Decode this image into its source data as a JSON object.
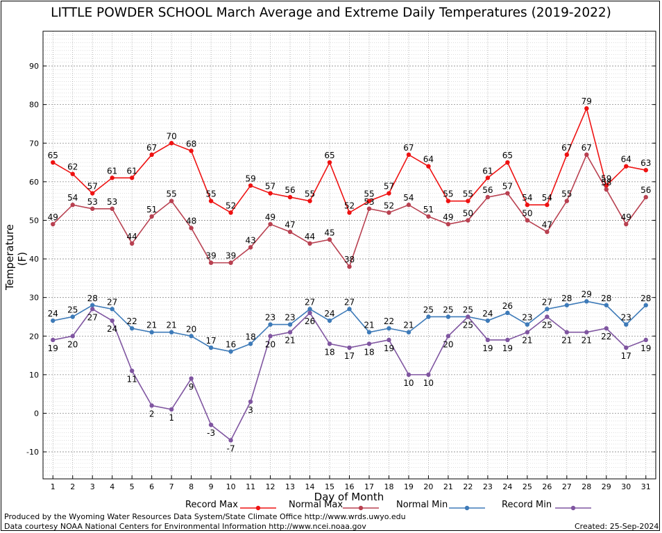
{
  "chart_data": {
    "type": "line",
    "title": "LITTLE POWDER SCHOOL March Average and Extreme Daily Temperatures (2019-2022)",
    "xlabel": "Day of Month",
    "ylabel": "Temperature (F)",
    "xlim": [
      0.5,
      31.5
    ],
    "ylim": [
      -17,
      99
    ],
    "x": [
      1,
      2,
      3,
      4,
      5,
      6,
      7,
      8,
      9,
      10,
      11,
      12,
      13,
      14,
      15,
      16,
      17,
      18,
      19,
      20,
      21,
      22,
      23,
      24,
      25,
      26,
      27,
      28,
      29,
      30,
      31
    ],
    "y_ticks": [
      -10,
      0,
      10,
      20,
      30,
      40,
      50,
      60,
      70,
      80,
      90
    ],
    "grid": true,
    "legend_position": "bottom",
    "series": [
      {
        "name": "Record Max",
        "color": "#ee1111",
        "label_pos": "above",
        "values": [
          65,
          62,
          57,
          61,
          61,
          67,
          70,
          68,
          55,
          52,
          59,
          57,
          56,
          55,
          65,
          52,
          55,
          57,
          67,
          64,
          55,
          55,
          61,
          65,
          54,
          54,
          67,
          79,
          59,
          64,
          63
        ]
      },
      {
        "name": "Normal Max",
        "color": "#b84050",
        "label_pos": "above",
        "values": [
          49,
          54,
          53,
          53,
          44,
          51,
          55,
          48,
          39,
          39,
          43,
          49,
          47,
          44,
          45,
          38,
          53,
          52,
          54,
          51,
          49,
          50,
          56,
          57,
          50,
          47,
          55,
          67,
          58,
          49,
          56
        ]
      },
      {
        "name": "Normal Min",
        "color": "#3d7ab8",
        "label_pos": "above",
        "values": [
          24,
          25,
          28,
          27,
          22,
          21,
          21,
          20,
          17,
          16,
          18,
          23,
          23,
          27,
          24,
          27,
          21,
          22,
          21,
          25,
          25,
          25,
          24,
          26,
          23,
          27,
          28,
          29,
          28,
          23,
          28
        ]
      },
      {
        "name": "Record Min",
        "color": "#7f55a0",
        "label_pos": "below",
        "values": [
          19,
          20,
          27,
          24,
          11,
          2,
          1,
          9,
          -3,
          -7,
          3,
          20,
          21,
          26,
          18,
          17,
          18,
          19,
          10,
          10,
          20,
          25,
          19,
          19,
          21,
          25,
          21,
          21,
          22,
          17,
          19
        ]
      }
    ]
  },
  "footer": {
    "produced_by": "Produced by the Wyoming Water Resources Data System/State Climate Office http://www.wrds.uwyo.edu",
    "courtesy": "Data courtesy NOAA National Centers for Environmental Information http://www.ncei.noaa.gov",
    "created": "Created:  25-Sep-2024"
  }
}
